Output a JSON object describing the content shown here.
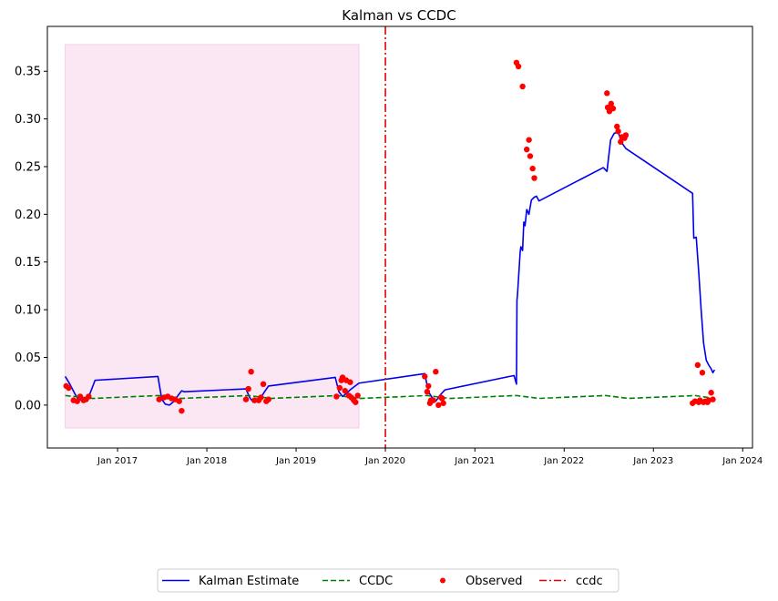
{
  "chart_data": {
    "type": "line",
    "title": "Kalman vs CCDC",
    "xlabel": "",
    "ylabel": "",
    "xlim": [
      "2016-03-20",
      "2024-02-10"
    ],
    "ylim": [
      -0.045,
      0.397
    ],
    "grid": false,
    "legend_placement": "bottom-center",
    "x_ticks": [
      "2017-01-01",
      "2018-01-01",
      "2019-01-01",
      "2020-01-01",
      "2021-01-01",
      "2022-01-01",
      "2023-01-01",
      "2024-01-01"
    ],
    "x_tick_labels": [
      "Jan 2017",
      "Jan 2018",
      "Jan 2019",
      "Jan 2020",
      "Jan 2021",
      "Jan 2022",
      "Jan 2023",
      "Jan 2024"
    ],
    "y_ticks": [
      0.0,
      0.05,
      0.1,
      0.15,
      0.2,
      0.25,
      0.3,
      0.35
    ],
    "y_tick_labels": [
      "0.00",
      "0.05",
      "0.10",
      "0.15",
      "0.20",
      "0.25",
      "0.30",
      "0.35"
    ],
    "shaded_region": {
      "x": [
        "2016-06-01",
        "2019-09-15"
      ],
      "y": [
        -0.024,
        0.378
      ],
      "color": "#fbe6f4"
    },
    "vertical_line": {
      "name": "ccdc",
      "x": "2020-01-01",
      "color": "#e00000"
    },
    "series": [
      {
        "name": "Kalman Estimate",
        "style": "solid",
        "color": "#0000ee",
        "points": [
          [
            "2016-06-01",
            0.03
          ],
          [
            "2016-06-20",
            0.022
          ],
          [
            "2016-07-10",
            0.012
          ],
          [
            "2016-07-25",
            0.006
          ],
          [
            "2016-08-10",
            0.005
          ],
          [
            "2016-08-25",
            0.007
          ],
          [
            "2016-09-10",
            0.012
          ],
          [
            "2016-10-01",
            0.026
          ],
          [
            "2017-06-15",
            0.03
          ],
          [
            "2017-07-01",
            0.006
          ],
          [
            "2017-07-15",
            0.001
          ],
          [
            "2017-08-01",
            0.0
          ],
          [
            "2017-08-20",
            0.004
          ],
          [
            "2017-09-05",
            0.01
          ],
          [
            "2017-09-20",
            0.015
          ],
          [
            "2017-10-01",
            0.014
          ],
          [
            "2018-06-10",
            0.017
          ],
          [
            "2018-06-25",
            0.008
          ],
          [
            "2018-07-10",
            0.003
          ],
          [
            "2018-07-25",
            0.004
          ],
          [
            "2018-08-10",
            0.008
          ],
          [
            "2018-08-25",
            0.014
          ],
          [
            "2018-09-10",
            0.02
          ],
          [
            "2019-06-10",
            0.029
          ],
          [
            "2019-06-25",
            0.014
          ],
          [
            "2019-07-10",
            0.009
          ],
          [
            "2019-07-25",
            0.012
          ],
          [
            "2019-08-10",
            0.016
          ],
          [
            "2019-08-25",
            0.019
          ],
          [
            "2019-09-15",
            0.023
          ],
          [
            "2020-06-10",
            0.033
          ],
          [
            "2020-06-25",
            0.014
          ],
          [
            "2020-07-10",
            0.008
          ],
          [
            "2020-07-25",
            0.004
          ],
          [
            "2020-08-10",
            0.01
          ],
          [
            "2020-09-01",
            0.016
          ],
          [
            "2021-06-10",
            0.031
          ],
          [
            "2021-06-20",
            0.022
          ],
          [
            "2021-06-22",
            0.11
          ],
          [
            "2021-06-24",
            0.115
          ],
          [
            "2021-07-05",
            0.16
          ],
          [
            "2021-07-08",
            0.166
          ],
          [
            "2021-07-15",
            0.162
          ],
          [
            "2021-07-20",
            0.192
          ],
          [
            "2021-07-25",
            0.188
          ],
          [
            "2021-08-01",
            0.205
          ],
          [
            "2021-08-10",
            0.2
          ],
          [
            "2021-08-20",
            0.215
          ],
          [
            "2021-09-01",
            0.218
          ],
          [
            "2021-09-10",
            0.219
          ],
          [
            "2021-09-20",
            0.214
          ],
          [
            "2022-06-10",
            0.249
          ],
          [
            "2022-06-25",
            0.245
          ],
          [
            "2022-07-10",
            0.278
          ],
          [
            "2022-07-25",
            0.285
          ],
          [
            "2022-08-10",
            0.286
          ],
          [
            "2022-08-25",
            0.275
          ],
          [
            "2022-09-10",
            0.269
          ],
          [
            "2023-06-10",
            0.222
          ],
          [
            "2023-06-15",
            0.175
          ],
          [
            "2023-06-25",
            0.176
          ],
          [
            "2023-07-05",
            0.14
          ],
          [
            "2023-07-15",
            0.1
          ],
          [
            "2023-07-25",
            0.065
          ],
          [
            "2023-08-05",
            0.047
          ],
          [
            "2023-08-15",
            0.042
          ],
          [
            "2023-08-25",
            0.038
          ],
          [
            "2023-09-01",
            0.034
          ],
          [
            "2023-09-08",
            0.037
          ]
        ]
      },
      {
        "name": "CCDC",
        "style": "dashed",
        "color": "#008000",
        "points": [
          [
            "2016-06-01",
            0.01
          ],
          [
            "2016-09-20",
            0.007
          ],
          [
            "2017-06-20",
            0.01
          ],
          [
            "2017-09-20",
            0.007
          ],
          [
            "2018-06-20",
            0.01
          ],
          [
            "2018-09-20",
            0.007
          ],
          [
            "2019-06-20",
            0.01
          ],
          [
            "2019-09-20",
            0.007
          ],
          [
            "2020-06-20",
            0.01
          ],
          [
            "2020-09-20",
            0.007
          ],
          [
            "2021-06-20",
            0.01
          ],
          [
            "2021-09-20",
            0.007
          ],
          [
            "2022-06-20",
            0.01
          ],
          [
            "2022-09-20",
            0.007
          ],
          [
            "2023-06-20",
            0.01
          ],
          [
            "2023-09-08",
            0.007
          ]
        ]
      },
      {
        "name": "Observed",
        "style": "markers",
        "color": "#ff0000",
        "points": [
          [
            "2016-06-05",
            0.02
          ],
          [
            "2016-06-15",
            0.018
          ],
          [
            "2016-07-05",
            0.005
          ],
          [
            "2016-07-20",
            0.004
          ],
          [
            "2016-08-01",
            0.009
          ],
          [
            "2016-08-15",
            0.005
          ],
          [
            "2016-08-25",
            0.006
          ],
          [
            "2016-09-05",
            0.009
          ],
          [
            "2017-06-20",
            0.006
          ],
          [
            "2017-07-10",
            0.008
          ],
          [
            "2017-07-25",
            0.009
          ],
          [
            "2017-08-10",
            0.007
          ],
          [
            "2017-08-25",
            0.006
          ],
          [
            "2017-09-10",
            0.004
          ],
          [
            "2017-09-20",
            -0.006
          ],
          [
            "2018-06-10",
            0.006
          ],
          [
            "2018-06-20",
            0.017
          ],
          [
            "2018-07-01",
            0.035
          ],
          [
            "2018-07-15",
            0.005
          ],
          [
            "2018-08-01",
            0.005
          ],
          [
            "2018-08-10",
            0.008
          ],
          [
            "2018-08-20",
            0.022
          ],
          [
            "2018-09-01",
            0.004
          ],
          [
            "2018-09-10",
            0.006
          ],
          [
            "2019-06-15",
            0.009
          ],
          [
            "2019-06-28",
            0.018
          ],
          [
            "2019-07-05",
            0.026
          ],
          [
            "2019-07-10",
            0.029
          ],
          [
            "2019-07-20",
            0.015
          ],
          [
            "2019-07-25",
            0.026
          ],
          [
            "2019-08-05",
            0.01
          ],
          [
            "2019-08-10",
            0.024
          ],
          [
            "2019-08-15",
            0.008
          ],
          [
            "2019-08-25",
            0.005
          ],
          [
            "2019-09-01",
            0.003
          ],
          [
            "2019-09-10",
            0.01
          ],
          [
            "2020-06-10",
            0.03
          ],
          [
            "2020-06-20",
            0.014
          ],
          [
            "2020-06-25",
            0.02
          ],
          [
            "2020-07-01",
            0.002
          ],
          [
            "2020-07-05",
            0.005
          ],
          [
            "2020-07-15",
            0.005
          ],
          [
            "2020-07-25",
            0.035
          ],
          [
            "2020-08-05",
            0.0
          ],
          [
            "2020-08-15",
            0.008
          ],
          [
            "2020-08-20",
            0.007
          ],
          [
            "2020-08-25",
            0.002
          ],
          [
            "2021-06-20",
            0.359
          ],
          [
            "2021-06-28",
            0.355
          ],
          [
            "2021-07-15",
            0.334
          ],
          [
            "2021-08-01",
            0.268
          ],
          [
            "2021-08-10",
            0.278
          ],
          [
            "2021-08-15",
            0.261
          ],
          [
            "2021-08-25",
            0.248
          ],
          [
            "2021-09-01",
            0.238
          ],
          [
            "2022-06-25",
            0.327
          ],
          [
            "2022-06-28",
            0.312
          ],
          [
            "2022-07-05",
            0.308
          ],
          [
            "2022-07-12",
            0.316
          ],
          [
            "2022-07-20",
            0.311
          ],
          [
            "2022-08-05",
            0.292
          ],
          [
            "2022-08-10",
            0.287
          ],
          [
            "2022-08-20",
            0.276
          ],
          [
            "2022-08-25",
            0.281
          ],
          [
            "2022-09-05",
            0.28
          ],
          [
            "2022-09-10",
            0.283
          ],
          [
            "2023-06-10",
            0.002
          ],
          [
            "2023-06-20",
            0.004
          ],
          [
            "2023-07-01",
            0.042
          ],
          [
            "2023-07-05",
            0.003
          ],
          [
            "2023-07-10",
            0.005
          ],
          [
            "2023-07-20",
            0.034
          ],
          [
            "2023-07-25",
            0.003
          ],
          [
            "2023-08-01",
            0.004
          ],
          [
            "2023-08-10",
            0.003
          ],
          [
            "2023-08-15",
            0.005
          ],
          [
            "2023-08-25",
            0.013
          ],
          [
            "2023-09-01",
            0.006
          ]
        ]
      }
    ]
  },
  "legend": {
    "entries": [
      {
        "label": "Kalman Estimate",
        "style": "solid",
        "color": "#0000ee"
      },
      {
        "label": "CCDC",
        "style": "dashed",
        "color": "#008000"
      },
      {
        "label": "Observed",
        "style": "marker",
        "color": "#ff0000"
      },
      {
        "label": "ccdc",
        "style": "dashdot",
        "color": "#e00000"
      }
    ]
  }
}
